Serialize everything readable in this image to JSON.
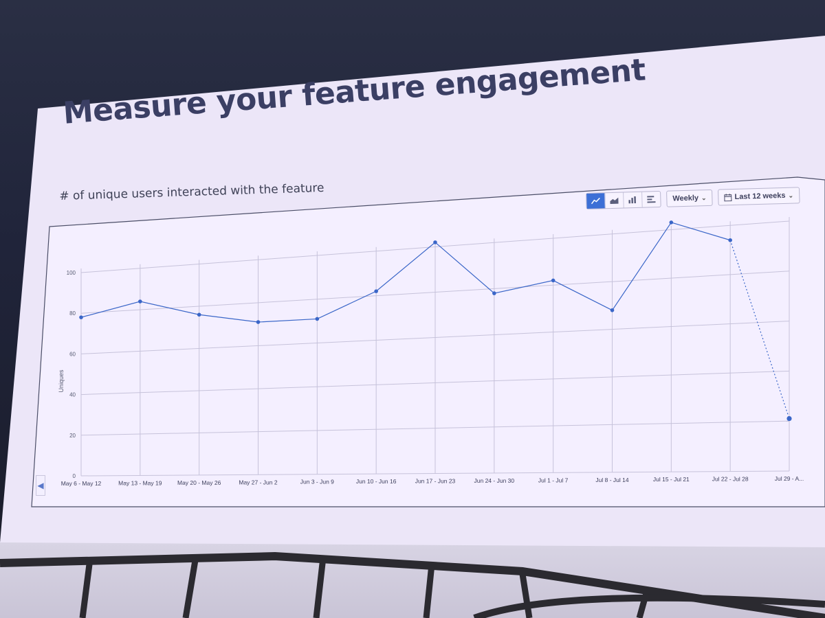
{
  "slide": {
    "title": "Measure your feature engagement",
    "subtitle": "# of unique users interacted with the feature"
  },
  "toolbar": {
    "views": [
      {
        "name": "line-chart-view",
        "icon": "line-chart-icon",
        "active": true
      },
      {
        "name": "area-chart-view",
        "icon": "area-chart-icon",
        "active": false
      },
      {
        "name": "bar-chart-view",
        "icon": "bar-chart-icon",
        "active": false
      },
      {
        "name": "horizontal-bar-view",
        "icon": "horizontal-bar-icon",
        "active": false
      }
    ],
    "interval_label": "Weekly",
    "range_label": "Last 12 weeks",
    "range_icon": "calendar-icon",
    "chevron_icon": "chevron-down-icon"
  },
  "nav": {
    "prev_icon": "chevron-left-icon"
  },
  "colors": {
    "accent": "#3c6fd6",
    "line": "#3a66c8",
    "grid": "#c6c2da",
    "screen": "#ece6f8",
    "title": "#3b3f64"
  },
  "chart_data": {
    "type": "line",
    "title": "",
    "xlabel": "",
    "ylabel": "Uniques",
    "ylim": [
      0,
      100
    ],
    "yticks": [
      0,
      20,
      40,
      60,
      80,
      100
    ],
    "grid": true,
    "categories": [
      "May 6 - May 12",
      "May 13 - May 19",
      "May 20 - May 26",
      "May 27 - Jun 2",
      "Jun 3 - Jun 9",
      "Jun 10 - Jun 16",
      "Jun 17 - Jun 23",
      "Jun 24 - Jun 30",
      "Jul 1 - Jul 7",
      "Jul 8 - Jul 14",
      "Jul 15 - Jul 21",
      "Jul 22 - Jul 28",
      "Jul 29 - A..."
    ],
    "series": [
      {
        "values": [
          78,
          84,
          76,
          71,
          71,
          82,
          102,
          78,
          82,
          68,
          103,
          94,
          21
        ],
        "partial_last_point": true
      }
    ]
  }
}
